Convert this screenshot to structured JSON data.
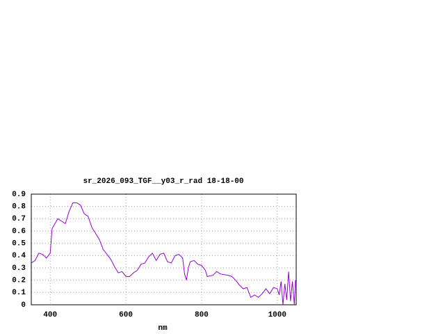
{
  "chart_data": {
    "type": "line",
    "title": "sr_2026_093_TGF__y03_r_rad 18-18-00",
    "x_label": "nm",
    "x": [
      350,
      360,
      370,
      380,
      390,
      400,
      405,
      420,
      430,
      440,
      450,
      460,
      470,
      480,
      490,
      500,
      510,
      520,
      530,
      540,
      550,
      560,
      570,
      580,
      590,
      600,
      610,
      620,
      630,
      640,
      650,
      660,
      670,
      680,
      690,
      700,
      710,
      720,
      730,
      740,
      750,
      755,
      760,
      765,
      770,
      780,
      790,
      800,
      810,
      815,
      830,
      840,
      850,
      870,
      880,
      890,
      900,
      910,
      920,
      930,
      940,
      950,
      960,
      970,
      980,
      990,
      1000,
      1005,
      1010,
      1015,
      1020,
      1025,
      1030,
      1035,
      1040,
      1045,
      1048
    ],
    "series": [
      {
        "color": "#9400d3",
        "values": [
          0.34,
          0.36,
          0.42,
          0.41,
          0.38,
          0.42,
          0.62,
          0.7,
          0.68,
          0.66,
          0.76,
          0.83,
          0.83,
          0.81,
          0.74,
          0.72,
          0.63,
          0.58,
          0.53,
          0.45,
          0.41,
          0.37,
          0.31,
          0.26,
          0.27,
          0.23,
          0.23,
          0.26,
          0.28,
          0.33,
          0.34,
          0.39,
          0.42,
          0.36,
          0.41,
          0.42,
          0.35,
          0.34,
          0.4,
          0.41,
          0.38,
          0.25,
          0.2,
          0.3,
          0.35,
          0.36,
          0.33,
          0.32,
          0.28,
          0.23,
          0.24,
          0.27,
          0.25,
          0.24,
          0.23,
          0.2,
          0.16,
          0.13,
          0.14,
          0.06,
          0.08,
          0.06,
          0.09,
          0.13,
          0.09,
          0.14,
          0.13,
          0.08,
          0.19,
          0.0,
          0.17,
          0.04,
          0.27,
          0.03,
          0.19,
          0.0,
          0.2
        ]
      }
    ],
    "xlim": [
      350,
      1050
    ],
    "xticks": [
      400,
      600,
      800,
      1000
    ],
    "ylim": [
      0,
      0.9
    ],
    "yticks": [
      0,
      0.1,
      0.2,
      0.3,
      0.4,
      0.5,
      0.6,
      0.7,
      0.8,
      0.9
    ],
    "grid": true
  }
}
